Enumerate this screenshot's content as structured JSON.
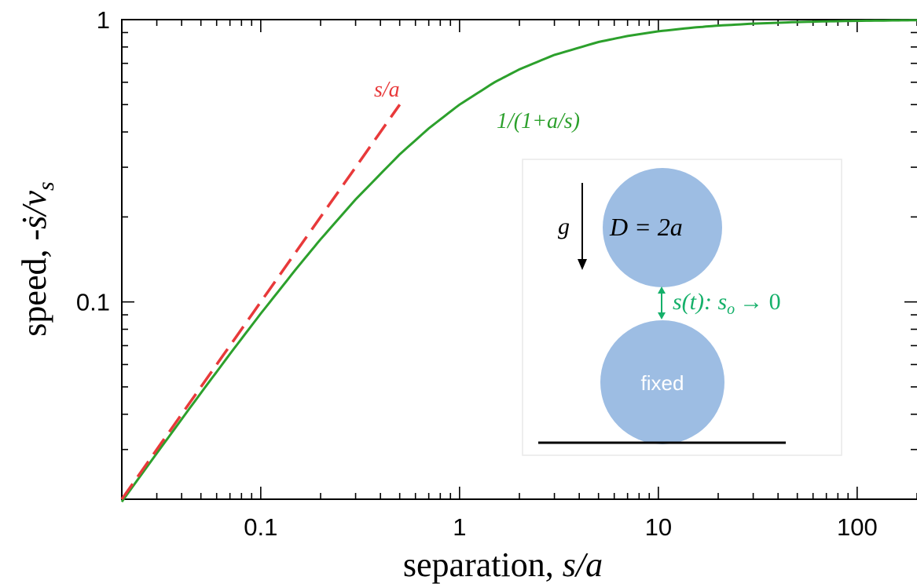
{
  "chart_data": {
    "type": "line",
    "x_scale": "log",
    "y_scale": "log",
    "xlim": [
      0.02,
      200
    ],
    "ylim": [
      0.02,
      1
    ],
    "xlabel": "separation, s/a",
    "ylabel": "speed, -ṡ/v_s",
    "ylabel_parts": {
      "prefix": "speed, -",
      "s_dot": "ṡ",
      "slash_v": "/v",
      "sub": "s"
    },
    "x_ticks": [
      {
        "value": 0.1,
        "label": "0.1"
      },
      {
        "value": 1,
        "label": "1"
      },
      {
        "value": 10,
        "label": "10"
      },
      {
        "value": 100,
        "label": "100"
      }
    ],
    "y_ticks": [
      {
        "value": 0.1,
        "label": "0.1"
      },
      {
        "value": 1,
        "label": "1"
      }
    ],
    "grid": false,
    "series": [
      {
        "name": "1/(1+a/s)",
        "color": "#2ca02c",
        "style": "solid",
        "x": [
          0.02,
          0.03,
          0.05,
          0.07,
          0.1,
          0.15,
          0.2,
          0.3,
          0.5,
          0.7,
          1,
          1.5,
          2,
          3,
          5,
          7,
          10,
          15,
          20,
          30,
          50,
          70,
          100,
          150,
          200
        ],
        "y": [
          0.0196,
          0.0291,
          0.0476,
          0.0654,
          0.0909,
          0.1304,
          0.1667,
          0.2308,
          0.3333,
          0.4118,
          0.5,
          0.6,
          0.6667,
          0.75,
          0.8333,
          0.875,
          0.9091,
          0.9375,
          0.9524,
          0.9677,
          0.9804,
          0.9859,
          0.9901,
          0.9934,
          0.995
        ]
      },
      {
        "name": "s/a",
        "color": "#e8393a",
        "style": "dashed",
        "x": [
          0.02,
          0.05,
          0.1,
          0.2,
          0.3,
          0.5
        ],
        "y": [
          0.02,
          0.05,
          0.1,
          0.2,
          0.3,
          0.5
        ]
      }
    ],
    "annotations": [
      {
        "text": "s/a",
        "color": "#e8393a"
      },
      {
        "text": "1/(1+a/s)",
        "color": "#2ca02c"
      }
    ]
  },
  "inset": {
    "gravity": "g",
    "diameter": "D = 2a",
    "separation": "s(t): s",
    "separation_sub": "o",
    "separation_tail": "→ 0",
    "fixed": "fixed",
    "colors": {
      "sphere": "#9dbde3",
      "green": "#15b06a"
    }
  }
}
